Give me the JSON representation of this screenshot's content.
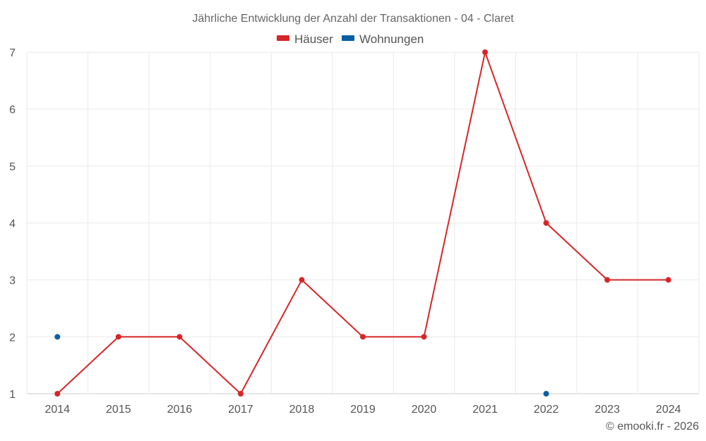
{
  "chart_data": {
    "type": "line",
    "title": "Jährliche Entwicklung der Anzahl der Transaktionen - 04 - Claret",
    "categories": [
      "2014",
      "2015",
      "2016",
      "2017",
      "2018",
      "2019",
      "2020",
      "2021",
      "2022",
      "2023",
      "2024"
    ],
    "series": [
      {
        "name": "Häuser",
        "color": "#d62728",
        "values": [
          1,
          2,
          2,
          1,
          3,
          2,
          2,
          7,
          4,
          3,
          3
        ],
        "style": "line-with-markers"
      },
      {
        "name": "Wohnungen",
        "color": "#0b5fa5",
        "values": [
          2,
          null,
          null,
          null,
          null,
          null,
          null,
          null,
          1,
          null,
          null
        ],
        "style": "markers"
      }
    ],
    "ylim": [
      1,
      7
    ],
    "yticks": [
      1,
      2,
      3,
      4,
      5,
      6,
      7
    ],
    "xlabel": "",
    "ylabel": "",
    "grid": true,
    "legend_position": "top-center"
  },
  "credit": "© emooki.fr - 2026"
}
